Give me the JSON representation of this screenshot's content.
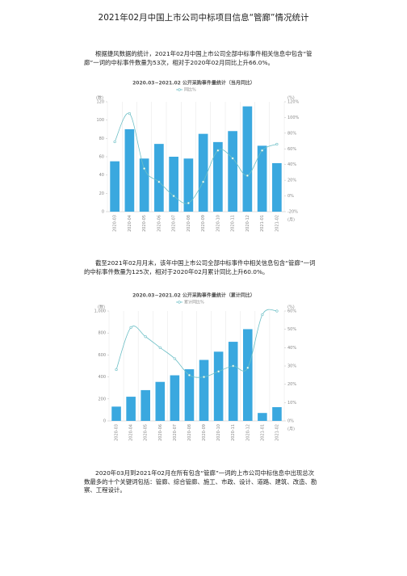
{
  "title": "2021年02月中国上市公司中标项目信息“管廊”情况统计",
  "paragraphs": [
    "根据捷风数据的统计，2021年02月中国上市公司全部中标事件相关信息中包含“管廊”一词的中标事件数量为53次，相对于2020年02月同比上升66.0%。",
    "截至2021年02月月末，该年中国上市公司全部中标事件中相关信息包含“管廊”一词的中标事件数量为125次，相对于2020年02月累计同比上升60.0%。",
    "2020年03月到2021年02月在所有包含“管廊”一词的上市公司中标信息中出现总次数最多的十个关键词包括：管廊、综合管廊、施工、市政、设计、道路、建筑、改造、勘察、工程设计。"
  ],
  "chart_data": [
    {
      "type": "bar",
      "title": "2020.03~2021.02 公开采购事件量统计（当月同比）",
      "ylabel": "(数)",
      "y2label": "(%)",
      "xlabel": "(月)",
      "categories": [
        "2020-03",
        "2020-04",
        "2020-05",
        "2020-06",
        "2020-07",
        "2020-08",
        "2020-09",
        "2020-10",
        "2020-11",
        "2020-12",
        "2021-01",
        "2021-02"
      ],
      "values": [
        55,
        90,
        58,
        74,
        60,
        58,
        85,
        76,
        88,
        115,
        72,
        53
      ],
      "color": "#3aa8df",
      "ylim": [
        0,
        120
      ],
      "yticks": [
        0,
        20,
        40,
        60,
        80,
        100,
        120
      ],
      "y2lim": [
        -20,
        120
      ],
      "y2ticks": [
        {
          "value": -20,
          "label": "-20%"
        },
        {
          "value": 0,
          "label": "0%"
        },
        {
          "value": 20,
          "label": "20%"
        },
        {
          "value": 40,
          "label": "40%"
        },
        {
          "value": 60,
          "label": "60%"
        },
        {
          "value": 80,
          "label": "80%"
        },
        {
          "value": 100,
          "label": "100%"
        },
        {
          "value": 120,
          "label": "120%"
        }
      ],
      "series": [
        {
          "name": "同比%",
          "type": "line",
          "axis": "y2",
          "color": "#6cbfc6",
          "values": [
            69,
            105,
            35,
            18,
            0,
            -9,
            18,
            58,
            48,
            26,
            58,
            66
          ]
        }
      ]
    },
    {
      "type": "bar",
      "title": "2020.03~2021.02 公开采购事件量统计（累计同比）",
      "ylabel": "(数)",
      "y2label": "(%)",
      "xlabel": "(月)",
      "categories": [
        "2020-03",
        "2020-04",
        "2020-05",
        "2020-06",
        "2020-07",
        "2020-08",
        "2020-09",
        "2020-10",
        "2020-11",
        "2020-12",
        "2021-01",
        "2021-02"
      ],
      "values": [
        130,
        220,
        280,
        355,
        415,
        470,
        555,
        630,
        720,
        835,
        72,
        125
      ],
      "color": "#3aa8df",
      "ylim": [
        0,
        1000
      ],
      "yticks": [
        0,
        200,
        400,
        600,
        800,
        {
          "value": 1000,
          "label": "1,000"
        }
      ],
      "y2lim": [
        0,
        60
      ],
      "y2ticks": [
        {
          "value": 0,
          "label": "0%"
        },
        {
          "value": 10,
          "label": "10%"
        },
        {
          "value": 20,
          "label": "20%"
        },
        {
          "value": 30,
          "label": "30%"
        },
        {
          "value": 40,
          "label": "40%"
        },
        {
          "value": 50,
          "label": "50%"
        },
        {
          "value": 60,
          "label": "60%"
        }
      ],
      "series": [
        {
          "name": "累计同比%",
          "type": "line",
          "axis": "y2",
          "color": "#6cbfc6",
          "values": [
            28,
            51,
            46,
            40,
            34,
            25,
            24,
            27,
            30,
            29,
            58,
            60
          ]
        }
      ]
    }
  ]
}
